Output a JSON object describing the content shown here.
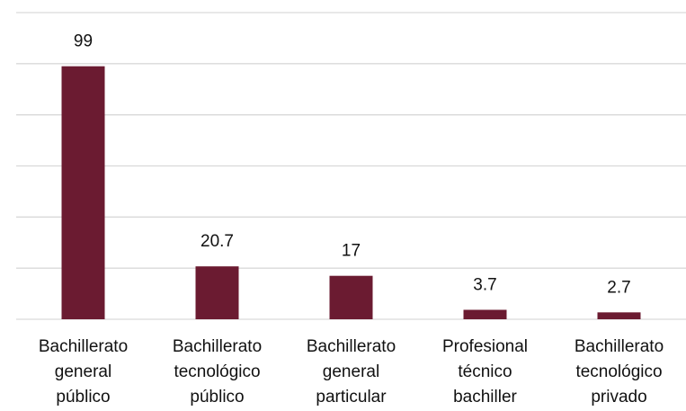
{
  "chart_data": {
    "type": "bar",
    "categories": [
      "Bachillerato general público",
      "Bachillerato tecnológico público",
      "Bachillerato general particular",
      "Profesional técnico bachiller",
      "Bachillerato tecnológico privado"
    ],
    "values": [
      99,
      20.7,
      17,
      3.7,
      2.7
    ],
    "color": "#6b1b31",
    "ylim": [
      0,
      120
    ],
    "yticks": [
      0,
      20,
      40,
      60,
      80,
      100,
      120
    ],
    "grid": true
  }
}
